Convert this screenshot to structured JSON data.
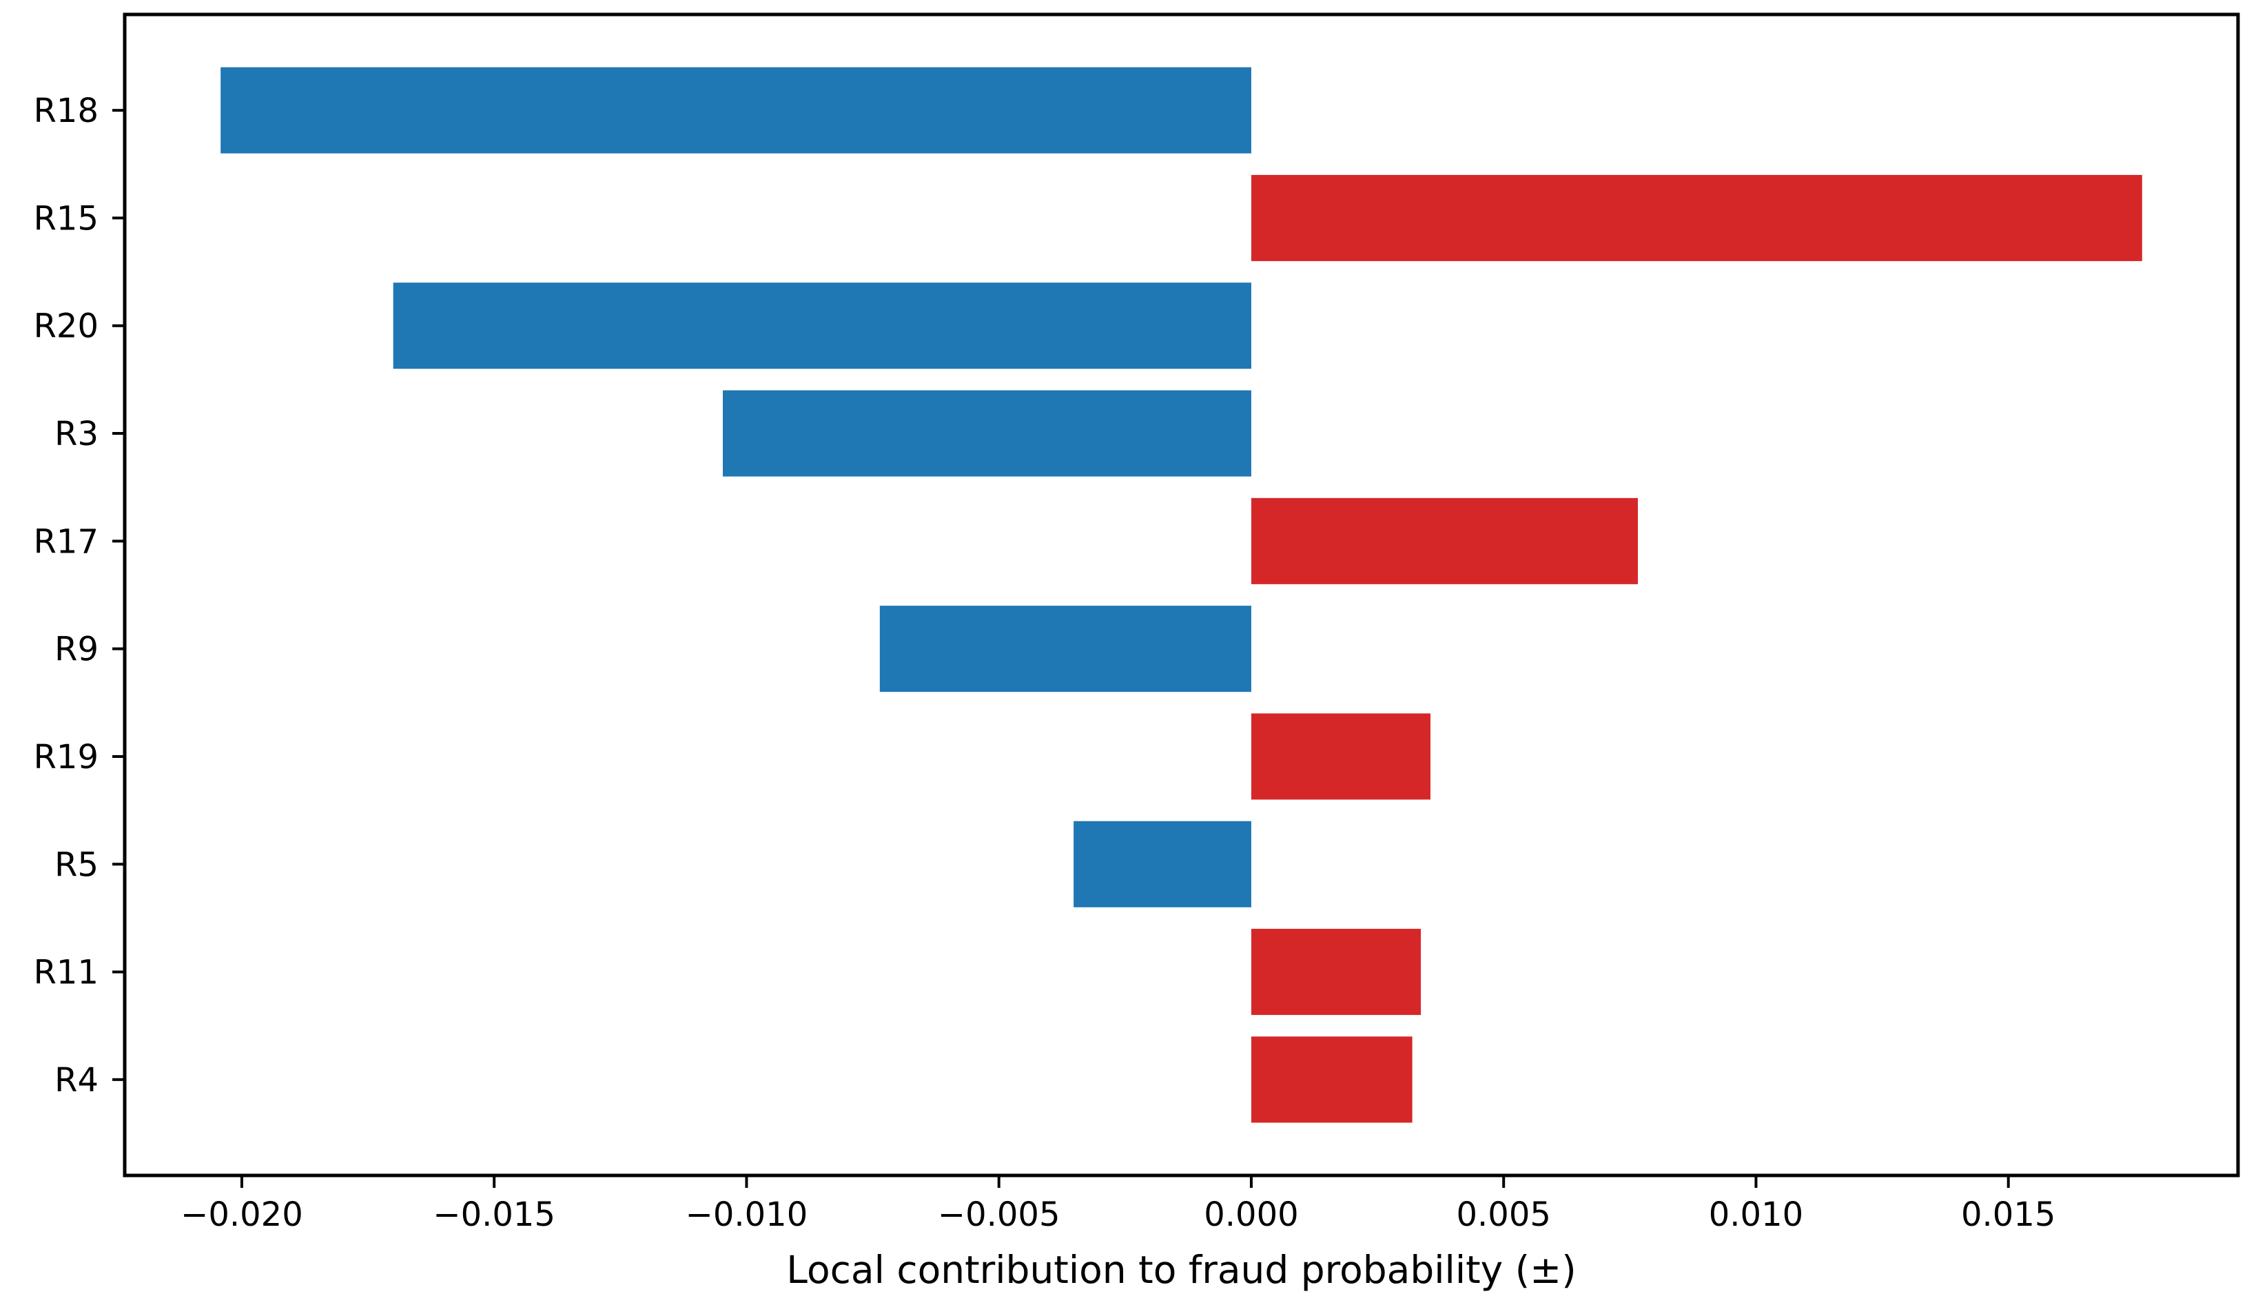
{
  "chart_data": {
    "type": "bar",
    "orientation": "horizontal",
    "title": "",
    "xlabel": "Local contribution to fraud probability (±)",
    "ylabel": "",
    "categories": [
      "R18",
      "R15",
      "R20",
      "R3",
      "R17",
      "R9",
      "R19",
      "R5",
      "R11",
      "R4"
    ],
    "values": [
      -0.02042,
      0.01765,
      -0.017,
      -0.01047,
      0.00766,
      -0.00736,
      0.00355,
      -0.00352,
      0.00336,
      0.00319
    ],
    "series_note": "bars sorted by absolute contribution, descending top to bottom",
    "bar_colors": {
      "positive": "#d62728",
      "negative": "#1f77b4"
    },
    "xlim": [
      -0.02232,
      0.01955
    ],
    "xticks": {
      "values": [
        -0.02,
        -0.015,
        -0.01,
        -0.005,
        0.0,
        0.005,
        0.01,
        0.015
      ],
      "labels": [
        "−0.020",
        "−0.015",
        "−0.010",
        "−0.005",
        "0.000",
        "0.005",
        "0.010",
        "0.015"
      ]
    },
    "grid": false,
    "legend": "none",
    "bar_height_fraction": 0.8,
    "axis_color": "#000000",
    "background_color": "#ffffff"
  }
}
